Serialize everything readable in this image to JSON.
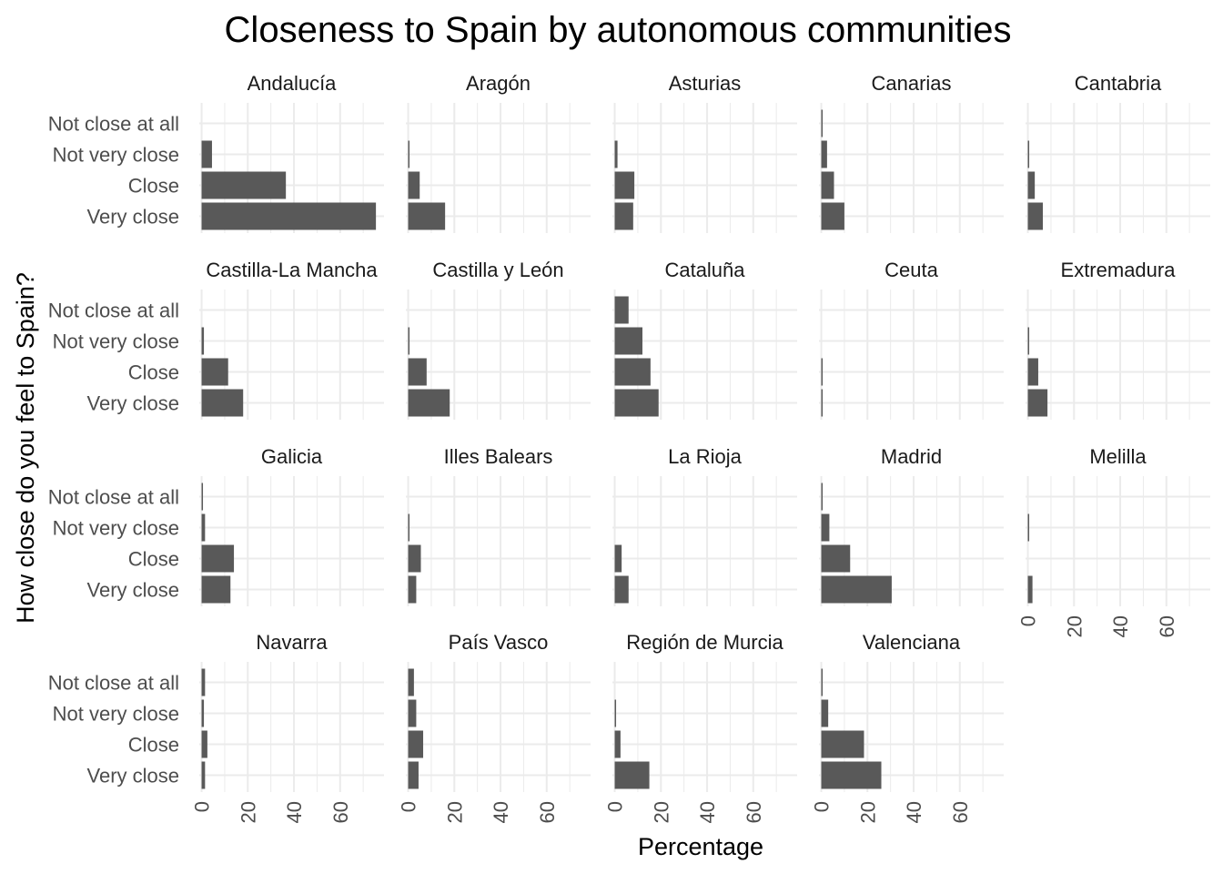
{
  "chart_data": {
    "type": "bar",
    "orientation": "horizontal",
    "facet": "wrap",
    "title": "Closeness to Spain by autonomous communities",
    "xlabel": "Percentage",
    "ylabel": "How close do you feel to Spain?",
    "categories": [
      "Not close at all",
      "Not very close",
      "Close",
      "Very close"
    ],
    "xticks": [
      "0",
      "20",
      "40",
      "60"
    ],
    "xlim": [
      -1,
      79
    ],
    "grid": true,
    "bar_color": "#595959",
    "facets": [
      {
        "name": "Andalucía",
        "values": [
          0,
          4.5,
          36.5,
          75.5
        ]
      },
      {
        "name": "Aragón",
        "values": [
          0,
          0.3,
          5,
          16
        ]
      },
      {
        "name": "Asturias",
        "values": [
          0,
          1.2,
          8.5,
          8
        ]
      },
      {
        "name": "Canarias",
        "values": [
          0.3,
          2.5,
          5.5,
          10
        ]
      },
      {
        "name": "Cantabria",
        "values": [
          0,
          0.3,
          3,
          6.5
        ]
      },
      {
        "name": "Castilla-La Mancha",
        "values": [
          0,
          1,
          11.5,
          18
        ]
      },
      {
        "name": "Castilla y León",
        "values": [
          0,
          0.6,
          8,
          18
        ]
      },
      {
        "name": "Cataluña",
        "values": [
          6,
          12,
          15.5,
          19
        ]
      },
      {
        "name": "Ceuta",
        "values": [
          0,
          0,
          0.6,
          0.6
        ]
      },
      {
        "name": "Extremadura",
        "values": [
          0,
          0.3,
          4.5,
          8.5
        ]
      },
      {
        "name": "Galicia",
        "values": [
          0.3,
          1.5,
          14,
          12.5
        ]
      },
      {
        "name": "Illes Balears",
        "values": [
          0,
          0.3,
          5.5,
          3.5
        ]
      },
      {
        "name": "La Rioja",
        "values": [
          0,
          0,
          3,
          6
        ]
      },
      {
        "name": "Madrid",
        "values": [
          0.3,
          3.5,
          12.5,
          30.5
        ]
      },
      {
        "name": "Melilla",
        "values": [
          0,
          0.3,
          0,
          2
        ]
      },
      {
        "name": "Navarra",
        "values": [
          1.5,
          1,
          2.5,
          1.5
        ]
      },
      {
        "name": "País Vasco",
        "values": [
          2.5,
          3.5,
          6.5,
          4.5
        ]
      },
      {
        "name": "Región de Murcia",
        "values": [
          0,
          0.3,
          2.5,
          15
        ]
      },
      {
        "name": "Valenciana",
        "values": [
          0.3,
          3,
          18.5,
          26
        ]
      }
    ]
  }
}
